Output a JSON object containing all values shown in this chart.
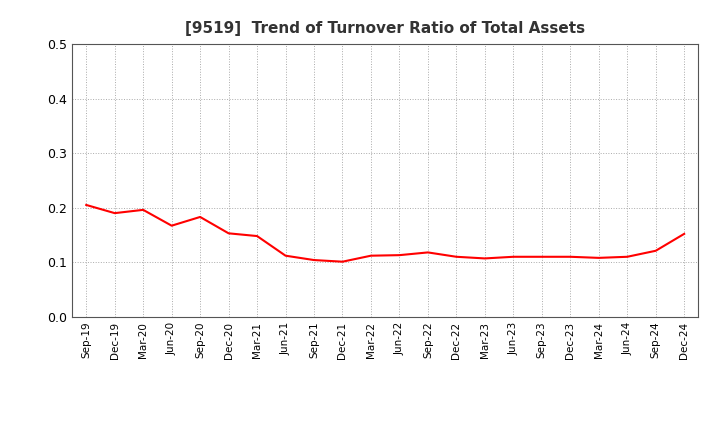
{
  "title": "[9519]  Trend of Turnover Ratio of Total Assets",
  "line_color": "#FF0000",
  "line_width": 1.5,
  "background_color": "#FFFFFF",
  "grid_color": "#AAAAAA",
  "ylim": [
    0.0,
    0.5
  ],
  "yticks": [
    0.0,
    0.1,
    0.2,
    0.3,
    0.4,
    0.5
  ],
  "x_labels": [
    "Sep-19",
    "Dec-19",
    "Mar-20",
    "Jun-20",
    "Sep-20",
    "Dec-20",
    "Mar-21",
    "Jun-21",
    "Sep-21",
    "Dec-21",
    "Mar-22",
    "Jun-22",
    "Sep-22",
    "Dec-22",
    "Mar-23",
    "Jun-23",
    "Sep-23",
    "Dec-23",
    "Mar-24",
    "Jun-24",
    "Sep-24",
    "Dec-24"
  ],
  "y_values": [
    0.205,
    0.19,
    0.196,
    0.167,
    0.183,
    0.153,
    0.148,
    0.112,
    0.104,
    0.101,
    0.112,
    0.113,
    0.118,
    0.11,
    0.107,
    0.11,
    0.11,
    0.11,
    0.108,
    0.11,
    0.121,
    0.152
  ]
}
